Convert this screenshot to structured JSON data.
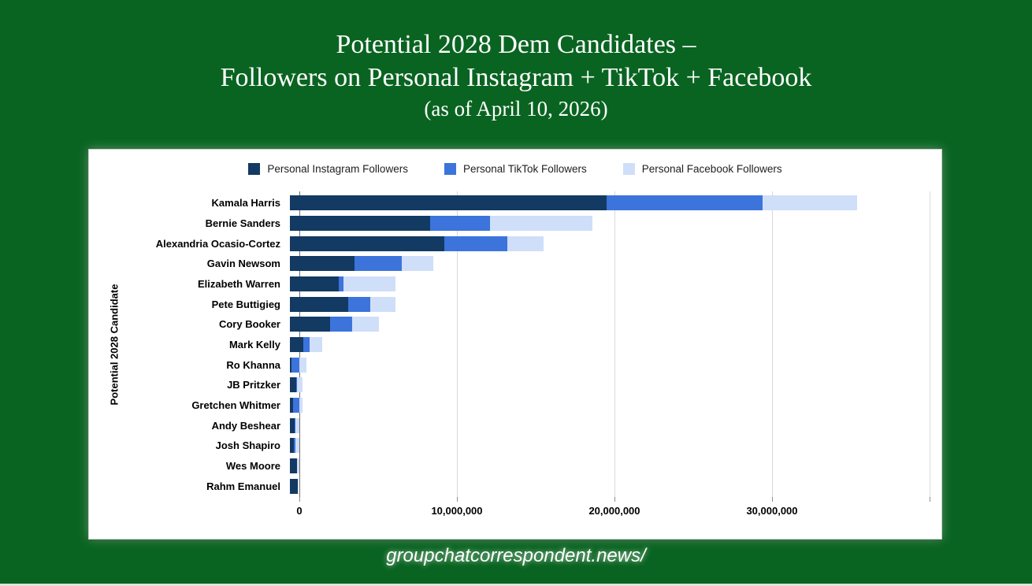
{
  "page": {
    "background_color": "#0a6421",
    "title_line1": "Potential 2028 Dem Candidates –",
    "title_line2": "Followers on Personal Instagram + TikTok + Facebook",
    "title_line3": "(as of April 10, 2026)",
    "footer": "groupchatcorrespondent.news/"
  },
  "colors": {
    "instagram": "#123a62",
    "tiktok": "#3c74dc",
    "facebook": "#cfdef9",
    "gridline": "#d9d9d9",
    "axis_line": "#6f6f6f"
  },
  "chart_data": {
    "type": "bar",
    "orientation": "horizontal",
    "stacked": true,
    "title": "",
    "xlabel": "",
    "ylabel": "Potential 2028 Candidate",
    "xlim": [
      0,
      40000000
    ],
    "x_tick_step": 10000000,
    "x_tick_labels": [
      "0",
      "10,000,000",
      "20,000,000",
      "30,000,000"
    ],
    "grid": true,
    "legend_position": "top",
    "categories": [
      "Kamala Harris",
      "Bernie Sanders",
      "Alexandria Ocasio-Cortez",
      "Gavin Newsom",
      "Elizabeth Warren",
      "Pete Buttigieg",
      "Cory Booker",
      "Mark Kelly",
      "Ro Khanna",
      "JB Pritzker",
      "Gretchen Whitmer",
      "Andy Beshear",
      "Josh Shapiro",
      "Wes Moore",
      "Rahm Emanuel"
    ],
    "series": [
      {
        "name": "Personal Instagram Followers",
        "color": "#123a62",
        "values": [
          20100000,
          8900000,
          9800000,
          4100000,
          3100000,
          3700000,
          2550000,
          850000,
          100000,
          400000,
          220000,
          280000,
          250000,
          450000,
          500000
        ]
      },
      {
        "name": "Personal TikTok Followers",
        "color": "#3c74dc",
        "values": [
          9900000,
          3800000,
          4000000,
          3000000,
          300000,
          1400000,
          1400000,
          400000,
          500000,
          50000,
          400000,
          50000,
          100000,
          20000,
          20000
        ]
      },
      {
        "name": "Personal Facebook Followers",
        "color": "#cfdef9",
        "values": [
          6000000,
          6500000,
          2300000,
          2000000,
          3300000,
          1600000,
          1700000,
          800000,
          450000,
          350000,
          200000,
          250000,
          250000,
          130000,
          30000
        ]
      }
    ]
  }
}
